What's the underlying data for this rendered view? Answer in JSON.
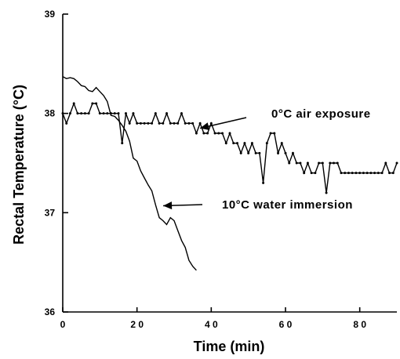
{
  "chart_data": {
    "type": "line",
    "xlabel": "Time (min)",
    "ylabel": "Rectal Temperature (°C)",
    "xlim": [
      0,
      90
    ],
    "ylim": [
      36,
      39
    ],
    "xticks": [
      0,
      20,
      40,
      60,
      80
    ],
    "yticks": [
      36,
      37,
      38,
      39
    ],
    "xtick_labels": [
      "0",
      "2 0",
      "4 0",
      "6 0",
      "8 0"
    ],
    "ytick_labels": [
      "36",
      "37",
      "38",
      "39"
    ],
    "grid": false,
    "series": [
      {
        "name": "0°C air exposure",
        "markers": true,
        "x": [
          0,
          1,
          2,
          3,
          4,
          5,
          6,
          7,
          8,
          9,
          10,
          11,
          12,
          13,
          14,
          15,
          16,
          17,
          18,
          19,
          20,
          21,
          22,
          23,
          24,
          25,
          26,
          27,
          28,
          29,
          30,
          31,
          32,
          33,
          34,
          35,
          36,
          37,
          38,
          39,
          40,
          41,
          42,
          43,
          44,
          45,
          46,
          47,
          48,
          49,
          50,
          51,
          52,
          53,
          54,
          55,
          56,
          57,
          58,
          59,
          60,
          61,
          62,
          63,
          64,
          65,
          66,
          67,
          68,
          69,
          70,
          71,
          72,
          73,
          74,
          75,
          76,
          77,
          78,
          79,
          80,
          81,
          82,
          83,
          84,
          85,
          86,
          87,
          88,
          89,
          90
        ],
        "y": [
          38.0,
          37.9,
          38.0,
          38.1,
          38.0,
          38.0,
          38.0,
          38.0,
          38.1,
          38.1,
          38.0,
          38.0,
          38.0,
          38.0,
          38.0,
          38.0,
          37.7,
          38.0,
          37.9,
          38.0,
          37.9,
          37.9,
          37.9,
          37.9,
          37.9,
          38.0,
          37.9,
          37.9,
          38.0,
          37.9,
          37.9,
          37.9,
          38.0,
          37.9,
          37.9,
          37.9,
          37.8,
          37.9,
          37.8,
          37.8,
          37.9,
          37.8,
          37.8,
          37.8,
          37.7,
          37.8,
          37.7,
          37.7,
          37.6,
          37.7,
          37.6,
          37.7,
          37.6,
          37.6,
          37.3,
          37.7,
          37.8,
          37.8,
          37.6,
          37.7,
          37.6,
          37.5,
          37.6,
          37.5,
          37.5,
          37.4,
          37.5,
          37.4,
          37.4,
          37.5,
          37.5,
          37.2,
          37.5,
          37.5,
          37.5,
          37.4,
          37.4,
          37.4,
          37.4,
          37.4,
          37.4,
          37.4,
          37.4,
          37.4,
          37.4,
          37.4,
          37.4,
          37.5,
          37.4,
          37.4,
          37.5
        ]
      },
      {
        "name": "10°C water immersion",
        "markers": false,
        "x": [
          0,
          1,
          2,
          3,
          4,
          5,
          6,
          7,
          8,
          9,
          10,
          11,
          12,
          13,
          14,
          15,
          16,
          17,
          18,
          19,
          20,
          21,
          22,
          23,
          24,
          25,
          26,
          27,
          28,
          29,
          30,
          31,
          32,
          33,
          34,
          35,
          36
        ],
        "y": [
          38.37,
          38.35,
          38.36,
          38.35,
          38.32,
          38.28,
          38.27,
          38.23,
          38.22,
          38.26,
          38.22,
          38.18,
          38.12,
          37.98,
          37.97,
          37.93,
          37.88,
          37.82,
          37.72,
          37.55,
          37.52,
          37.42,
          37.35,
          37.28,
          37.22,
          37.08,
          36.95,
          36.92,
          36.88,
          36.95,
          36.92,
          36.82,
          36.72,
          36.65,
          36.52,
          36.46,
          36.42
        ]
      }
    ],
    "annotations": [
      {
        "text": "0°C air exposure",
        "series": 0,
        "arrow_to": [
          37,
          37.85
        ]
      },
      {
        "text": "10°C water immersion",
        "series": 1,
        "arrow_to": [
          26,
          37.07
        ]
      }
    ]
  }
}
